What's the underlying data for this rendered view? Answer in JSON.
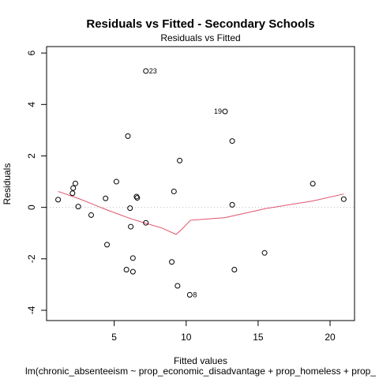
{
  "chart_data": {
    "type": "scatter",
    "title": "Residuals vs Fitted - Secondary Schools",
    "subtitle": "Residuals vs Fitted",
    "xlabel": "Fitted values",
    "ylabel": "Residuals",
    "caption": "lm(chronic_absenteeism ~ prop_economic_disadvantage + prop_homeless + prop_",
    "xlim": [
      0.3,
      21.7
    ],
    "ylim": [
      -4.4,
      6.25
    ],
    "x_ticks": [
      5,
      10,
      15,
      20
    ],
    "y_ticks": [
      -4,
      -2,
      0,
      2,
      4,
      6
    ],
    "points": [
      {
        "x": 1.1,
        "y": 0.3
      },
      {
        "x": 2.1,
        "y": 0.55
      },
      {
        "x": 2.15,
        "y": 0.75
      },
      {
        "x": 2.3,
        "y": 0.93
      },
      {
        "x": 2.5,
        "y": 0.03
      },
      {
        "x": 3.4,
        "y": -0.3
      },
      {
        "x": 4.4,
        "y": 0.35
      },
      {
        "x": 4.5,
        "y": -1.45
      },
      {
        "x": 5.15,
        "y": 1.0
      },
      {
        "x": 5.85,
        "y": -2.42
      },
      {
        "x": 5.95,
        "y": 2.77
      },
      {
        "x": 6.1,
        "y": -0.03
      },
      {
        "x": 6.15,
        "y": -0.75
      },
      {
        "x": 6.3,
        "y": -1.97
      },
      {
        "x": 6.3,
        "y": -2.5
      },
      {
        "x": 6.55,
        "y": 0.42
      },
      {
        "x": 6.6,
        "y": 0.37
      },
      {
        "x": 7.2,
        "y": 5.3,
        "label": "23"
      },
      {
        "x": 7.2,
        "y": -0.6
      },
      {
        "x": 9.0,
        "y": -2.12
      },
      {
        "x": 9.15,
        "y": 0.62
      },
      {
        "x": 9.4,
        "y": -3.05
      },
      {
        "x": 9.55,
        "y": 1.82
      },
      {
        "x": 10.25,
        "y": -3.4,
        "label": "8"
      },
      {
        "x": 12.7,
        "y": 3.73,
        "label": "19"
      },
      {
        "x": 13.2,
        "y": 2.58
      },
      {
        "x": 13.2,
        "y": 0.1
      },
      {
        "x": 13.35,
        "y": -2.42
      },
      {
        "x": 15.45,
        "y": -1.77
      },
      {
        "x": 18.8,
        "y": 0.92
      },
      {
        "x": 20.95,
        "y": 0.32
      }
    ],
    "smoother": {
      "name": "",
      "color": "#df536b",
      "x": [
        1.1,
        2.5,
        4.5,
        6.2,
        7.2,
        8.3,
        9.3,
        9.7,
        10.3,
        12.7,
        15.5,
        18.8,
        20.95
      ],
      "y": [
        0.62,
        0.35,
        -0.1,
        -0.45,
        -0.62,
        -0.8,
        -1.05,
        -0.85,
        -0.5,
        -0.4,
        -0.05,
        0.25,
        0.52
      ]
    },
    "reference_line": {
      "y": 0,
      "color": "#bebebe",
      "style": "dotted"
    },
    "point_color": "#000000",
    "grid": false,
    "legend": "none"
  }
}
